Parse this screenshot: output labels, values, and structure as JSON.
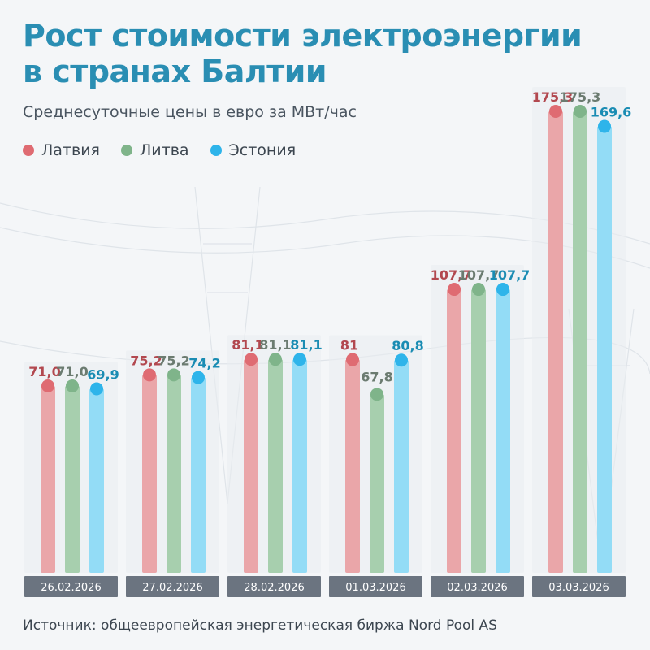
{
  "header": {
    "title_line1": "Рост стоимости электроэнергии",
    "title_line2": "в странах Балтии",
    "subtitle": "Среднесуточные цены в евро за МВт/час"
  },
  "colors": {
    "title": "#2a8eb3",
    "latvia_bar": "#eaa6a9",
    "latvia_dot": "#df6b72",
    "latvia_label": "#b2484f",
    "lithuania_bar": "#a7cfae",
    "lithuania_dot": "#7fb48a",
    "lithuania_label": "#6b7b70",
    "estonia_bar": "#93dcf6",
    "estonia_dot": "#2eb4ea",
    "estonia_label": "#1a8cb3",
    "date_box": "#6b7480",
    "date_text": "#ffffff",
    "panel": "#eaedf0"
  },
  "chart_data": {
    "type": "bar",
    "title": "Рост стоимости электроэнергии в странах Балтии",
    "subtitle": "Среднесуточные цены в евро за МВт/час",
    "categories": [
      "26.02.2026",
      "27.02.2026",
      "28.02.2026",
      "01.03.2026",
      "02.03.2026",
      "03.03.2026"
    ],
    "series": [
      {
        "name": "Латвия",
        "key": "latvia",
        "values": [
          71.0,
          75.2,
          81.1,
          81.0,
          107.7,
          175.3
        ],
        "labels": [
          "71,0",
          "75,2",
          "81,1",
          "81",
          "107,7",
          "175,3"
        ]
      },
      {
        "name": "Литва",
        "key": "lithuania",
        "values": [
          71.0,
          75.2,
          81.1,
          67.8,
          107.7,
          175.3
        ],
        "labels": [
          "71,0",
          "75,2",
          "81,1",
          "67,8",
          "107,7",
          "175,3"
        ]
      },
      {
        "name": "Эстония",
        "key": "estonia",
        "values": [
          69.9,
          74.2,
          81.1,
          80.8,
          107.7,
          169.6
        ],
        "labels": [
          "69,9",
          "74,2",
          "81,1",
          "80,8",
          "107,7",
          "169,6"
        ]
      }
    ],
    "legend": "top-left",
    "ylim": [
      0,
      180
    ],
    "grid": false
  },
  "footer": {
    "source": "Источник: общеевропейская энергетическая биржа Nord Pool AS"
  }
}
